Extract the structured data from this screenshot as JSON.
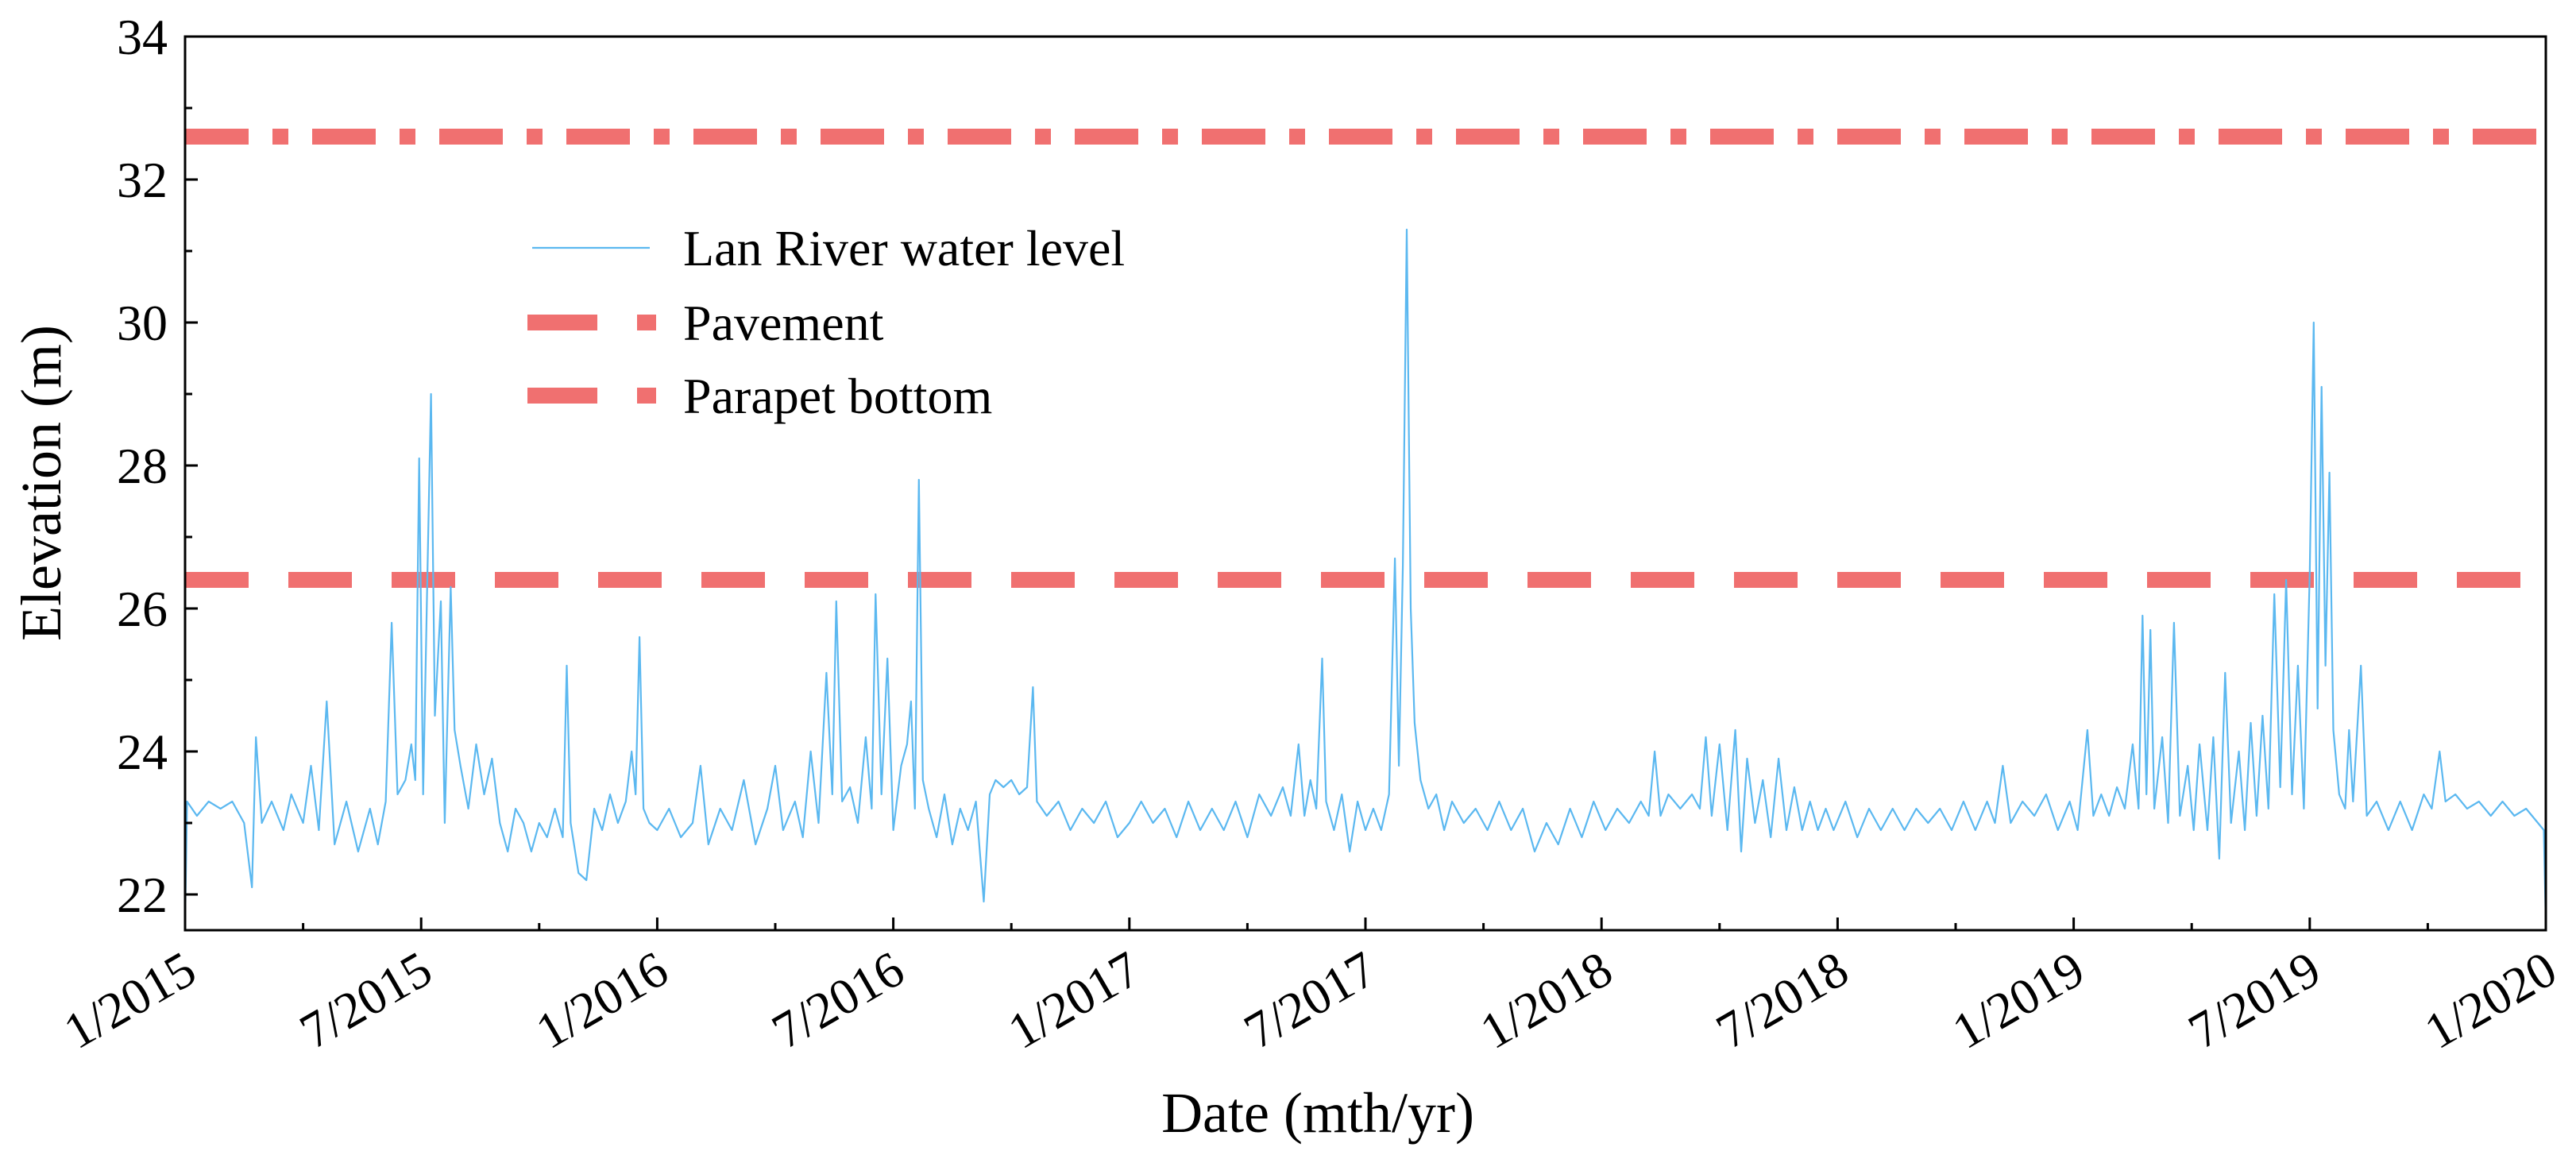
{
  "chart_data": {
    "type": "line",
    "title": "",
    "xlabel": "Date (mth/yr)",
    "ylabel": "Elevation (m)",
    "x_unit": "months since 1/2015",
    "xlim": [
      0,
      60
    ],
    "ylim": [
      21.5,
      34
    ],
    "xticks": [
      {
        "value": 0,
        "label": "1/2015"
      },
      {
        "value": 6,
        "label": "7/2015"
      },
      {
        "value": 12,
        "label": "1/2016"
      },
      {
        "value": 18,
        "label": "7/2016"
      },
      {
        "value": 24,
        "label": "1/2017"
      },
      {
        "value": 30,
        "label": "7/2017"
      },
      {
        "value": 36,
        "label": "1/2018"
      },
      {
        "value": 42,
        "label": "7/2018"
      },
      {
        "value": 48,
        "label": "1/2019"
      },
      {
        "value": 54,
        "label": "7/2019"
      },
      {
        "value": 60,
        "label": "1/2020"
      }
    ],
    "yticks": [
      {
        "value": 22,
        "label": "22"
      },
      {
        "value": 24,
        "label": "24"
      },
      {
        "value": 26,
        "label": "26"
      },
      {
        "value": 28,
        "label": "28"
      },
      {
        "value": 30,
        "label": "30"
      },
      {
        "value": 32,
        "label": "32"
      },
      {
        "value": 34,
        "label": "34"
      }
    ],
    "legend_position": "upper-left",
    "series": [
      {
        "name": "Lan River water level",
        "color": "#5BB8F0",
        "style": "solid",
        "points": [
          [
            0,
            21.6
          ],
          [
            0.05,
            23.3
          ],
          [
            0.3,
            23.1
          ],
          [
            0.6,
            23.3
          ],
          [
            0.9,
            23.2
          ],
          [
            1.2,
            23.3
          ],
          [
            1.5,
            23.0
          ],
          [
            1.7,
            22.1
          ],
          [
            1.8,
            24.2
          ],
          [
            1.95,
            23.0
          ],
          [
            2.2,
            23.3
          ],
          [
            2.5,
            22.9
          ],
          [
            2.7,
            23.4
          ],
          [
            3.0,
            23.0
          ],
          [
            3.2,
            23.8
          ],
          [
            3.4,
            22.9
          ],
          [
            3.6,
            24.7
          ],
          [
            3.8,
            22.7
          ],
          [
            4.1,
            23.3
          ],
          [
            4.4,
            22.6
          ],
          [
            4.7,
            23.2
          ],
          [
            4.9,
            22.7
          ],
          [
            5.1,
            23.3
          ],
          [
            5.25,
            25.8
          ],
          [
            5.4,
            23.4
          ],
          [
            5.6,
            23.6
          ],
          [
            5.75,
            24.1
          ],
          [
            5.85,
            23.6
          ],
          [
            5.95,
            28.1
          ],
          [
            6.05,
            23.4
          ],
          [
            6.15,
            26.2
          ],
          [
            6.25,
            29.0
          ],
          [
            6.35,
            24.5
          ],
          [
            6.5,
            26.1
          ],
          [
            6.6,
            23.0
          ],
          [
            6.75,
            26.3
          ],
          [
            6.85,
            24.3
          ],
          [
            7.0,
            23.8
          ],
          [
            7.2,
            23.2
          ],
          [
            7.4,
            24.1
          ],
          [
            7.6,
            23.4
          ],
          [
            7.8,
            23.9
          ],
          [
            8.0,
            23.0
          ],
          [
            8.2,
            22.6
          ],
          [
            8.4,
            23.2
          ],
          [
            8.6,
            23.0
          ],
          [
            8.8,
            22.6
          ],
          [
            9.0,
            23.0
          ],
          [
            9.2,
            22.8
          ],
          [
            9.4,
            23.2
          ],
          [
            9.6,
            22.8
          ],
          [
            9.7,
            25.2
          ],
          [
            9.8,
            23.0
          ],
          [
            10.0,
            22.3
          ],
          [
            10.2,
            22.2
          ],
          [
            10.4,
            23.2
          ],
          [
            10.6,
            22.9
          ],
          [
            10.8,
            23.4
          ],
          [
            11.0,
            23.0
          ],
          [
            11.2,
            23.3
          ],
          [
            11.35,
            24.0
          ],
          [
            11.45,
            23.4
          ],
          [
            11.55,
            25.6
          ],
          [
            11.65,
            23.2
          ],
          [
            11.8,
            23.0
          ],
          [
            12.0,
            22.9
          ],
          [
            12.3,
            23.2
          ],
          [
            12.6,
            22.8
          ],
          [
            12.9,
            23.0
          ],
          [
            13.1,
            23.8
          ],
          [
            13.3,
            22.7
          ],
          [
            13.6,
            23.2
          ],
          [
            13.9,
            22.9
          ],
          [
            14.2,
            23.6
          ],
          [
            14.5,
            22.7
          ],
          [
            14.8,
            23.2
          ],
          [
            15.0,
            23.8
          ],
          [
            15.2,
            22.9
          ],
          [
            15.5,
            23.3
          ],
          [
            15.7,
            22.8
          ],
          [
            15.9,
            24.0
          ],
          [
            16.1,
            23.0
          ],
          [
            16.3,
            25.1
          ],
          [
            16.45,
            23.4
          ],
          [
            16.55,
            26.1
          ],
          [
            16.7,
            23.3
          ],
          [
            16.9,
            23.5
          ],
          [
            17.1,
            23.0
          ],
          [
            17.3,
            24.2
          ],
          [
            17.45,
            23.2
          ],
          [
            17.55,
            26.2
          ],
          [
            17.7,
            23.4
          ],
          [
            17.85,
            25.3
          ],
          [
            18.0,
            22.9
          ],
          [
            18.2,
            23.8
          ],
          [
            18.35,
            24.1
          ],
          [
            18.45,
            24.7
          ],
          [
            18.55,
            23.2
          ],
          [
            18.65,
            27.8
          ],
          [
            18.75,
            23.6
          ],
          [
            18.9,
            23.2
          ],
          [
            19.1,
            22.8
          ],
          [
            19.3,
            23.4
          ],
          [
            19.5,
            22.7
          ],
          [
            19.7,
            23.2
          ],
          [
            19.9,
            22.9
          ],
          [
            20.1,
            23.3
          ],
          [
            20.3,
            21.9
          ],
          [
            20.45,
            23.4
          ],
          [
            20.6,
            23.6
          ],
          [
            20.8,
            23.5
          ],
          [
            21.0,
            23.6
          ],
          [
            21.2,
            23.4
          ],
          [
            21.4,
            23.5
          ],
          [
            21.55,
            24.9
          ],
          [
            21.65,
            23.3
          ],
          [
            21.9,
            23.1
          ],
          [
            22.2,
            23.3
          ],
          [
            22.5,
            22.9
          ],
          [
            22.8,
            23.2
          ],
          [
            23.1,
            23.0
          ],
          [
            23.4,
            23.3
          ],
          [
            23.7,
            22.8
          ],
          [
            24.0,
            23.0
          ],
          [
            24.3,
            23.3
          ],
          [
            24.6,
            23.0
          ],
          [
            24.9,
            23.2
          ],
          [
            25.2,
            22.8
          ],
          [
            25.5,
            23.3
          ],
          [
            25.8,
            22.9
          ],
          [
            26.1,
            23.2
          ],
          [
            26.4,
            22.9
          ],
          [
            26.7,
            23.3
          ],
          [
            27.0,
            22.8
          ],
          [
            27.3,
            23.4
          ],
          [
            27.6,
            23.1
          ],
          [
            27.9,
            23.5
          ],
          [
            28.1,
            23.1
          ],
          [
            28.3,
            24.1
          ],
          [
            28.45,
            23.1
          ],
          [
            28.6,
            23.6
          ],
          [
            28.75,
            23.2
          ],
          [
            28.9,
            25.3
          ],
          [
            29.0,
            23.3
          ],
          [
            29.2,
            22.9
          ],
          [
            29.4,
            23.4
          ],
          [
            29.6,
            22.6
          ],
          [
            29.8,
            23.3
          ],
          [
            30.0,
            22.9
          ],
          [
            30.2,
            23.2
          ],
          [
            30.4,
            22.9
          ],
          [
            30.6,
            23.4
          ],
          [
            30.75,
            26.7
          ],
          [
            30.85,
            23.8
          ],
          [
            30.95,
            26.6
          ],
          [
            31.05,
            31.3
          ],
          [
            31.15,
            26.0
          ],
          [
            31.25,
            24.4
          ],
          [
            31.4,
            23.6
          ],
          [
            31.6,
            23.2
          ],
          [
            31.8,
            23.4
          ],
          [
            32.0,
            22.9
          ],
          [
            32.2,
            23.3
          ],
          [
            32.5,
            23.0
          ],
          [
            32.8,
            23.2
          ],
          [
            33.1,
            22.9
          ],
          [
            33.4,
            23.3
          ],
          [
            33.7,
            22.9
          ],
          [
            34.0,
            23.2
          ],
          [
            34.3,
            22.6
          ],
          [
            34.6,
            23.0
          ],
          [
            34.9,
            22.7
          ],
          [
            35.2,
            23.2
          ],
          [
            35.5,
            22.8
          ],
          [
            35.8,
            23.3
          ],
          [
            36.1,
            22.9
          ],
          [
            36.4,
            23.2
          ],
          [
            36.7,
            23.0
          ],
          [
            37.0,
            23.3
          ],
          [
            37.2,
            23.1
          ],
          [
            37.35,
            24.0
          ],
          [
            37.5,
            23.1
          ],
          [
            37.7,
            23.4
          ],
          [
            38.0,
            23.2
          ],
          [
            38.3,
            23.4
          ],
          [
            38.5,
            23.2
          ],
          [
            38.65,
            24.2
          ],
          [
            38.8,
            23.1
          ],
          [
            39.0,
            24.1
          ],
          [
            39.2,
            22.9
          ],
          [
            39.4,
            24.3
          ],
          [
            39.55,
            22.6
          ],
          [
            39.7,
            23.9
          ],
          [
            39.9,
            23.0
          ],
          [
            40.1,
            23.6
          ],
          [
            40.3,
            22.8
          ],
          [
            40.5,
            23.9
          ],
          [
            40.7,
            22.9
          ],
          [
            40.9,
            23.5
          ],
          [
            41.1,
            22.9
          ],
          [
            41.3,
            23.3
          ],
          [
            41.5,
            22.9
          ],
          [
            41.7,
            23.2
          ],
          [
            41.9,
            22.9
          ],
          [
            42.2,
            23.3
          ],
          [
            42.5,
            22.8
          ],
          [
            42.8,
            23.2
          ],
          [
            43.1,
            22.9
          ],
          [
            43.4,
            23.2
          ],
          [
            43.7,
            22.9
          ],
          [
            44.0,
            23.2
          ],
          [
            44.3,
            23.0
          ],
          [
            44.6,
            23.2
          ],
          [
            44.9,
            22.9
          ],
          [
            45.2,
            23.3
          ],
          [
            45.5,
            22.9
          ],
          [
            45.8,
            23.3
          ],
          [
            46.0,
            23.0
          ],
          [
            46.2,
            23.8
          ],
          [
            46.4,
            23.0
          ],
          [
            46.7,
            23.3
          ],
          [
            47.0,
            23.1
          ],
          [
            47.3,
            23.4
          ],
          [
            47.6,
            22.9
          ],
          [
            47.9,
            23.3
          ],
          [
            48.1,
            22.9
          ],
          [
            48.35,
            24.3
          ],
          [
            48.5,
            23.1
          ],
          [
            48.7,
            23.4
          ],
          [
            48.9,
            23.1
          ],
          [
            49.1,
            23.5
          ],
          [
            49.3,
            23.2
          ],
          [
            49.5,
            24.1
          ],
          [
            49.65,
            23.2
          ],
          [
            49.75,
            25.9
          ],
          [
            49.85,
            23.4
          ],
          [
            49.95,
            25.7
          ],
          [
            50.05,
            23.2
          ],
          [
            50.25,
            24.2
          ],
          [
            50.4,
            23.0
          ],
          [
            50.55,
            25.8
          ],
          [
            50.7,
            23.1
          ],
          [
            50.9,
            23.8
          ],
          [
            51.05,
            22.9
          ],
          [
            51.2,
            24.1
          ],
          [
            51.4,
            22.9
          ],
          [
            51.55,
            24.2
          ],
          [
            51.7,
            22.5
          ],
          [
            51.85,
            25.1
          ],
          [
            52.0,
            23.0
          ],
          [
            52.2,
            24.0
          ],
          [
            52.35,
            22.9
          ],
          [
            52.5,
            24.4
          ],
          [
            52.65,
            23.1
          ],
          [
            52.8,
            24.5
          ],
          [
            52.95,
            23.2
          ],
          [
            53.1,
            26.2
          ],
          [
            53.25,
            23.5
          ],
          [
            53.4,
            26.4
          ],
          [
            53.55,
            23.4
          ],
          [
            53.7,
            25.2
          ],
          [
            53.85,
            23.2
          ],
          [
            54.0,
            26.5
          ],
          [
            54.1,
            30.0
          ],
          [
            54.2,
            24.6
          ],
          [
            54.3,
            29.1
          ],
          [
            54.4,
            25.2
          ],
          [
            54.5,
            27.9
          ],
          [
            54.6,
            24.3
          ],
          [
            54.75,
            23.4
          ],
          [
            54.9,
            23.2
          ],
          [
            55.0,
            24.3
          ],
          [
            55.1,
            23.3
          ],
          [
            55.3,
            25.2
          ],
          [
            55.45,
            23.1
          ],
          [
            55.7,
            23.3
          ],
          [
            56.0,
            22.9
          ],
          [
            56.3,
            23.3
          ],
          [
            56.6,
            22.9
          ],
          [
            56.9,
            23.4
          ],
          [
            57.1,
            23.2
          ],
          [
            57.3,
            24.0
          ],
          [
            57.45,
            23.3
          ],
          [
            57.7,
            23.4
          ],
          [
            58.0,
            23.2
          ],
          [
            58.3,
            23.3
          ],
          [
            58.6,
            23.1
          ],
          [
            58.9,
            23.3
          ],
          [
            59.2,
            23.1
          ],
          [
            59.5,
            23.2
          ],
          [
            59.8,
            23.0
          ],
          [
            59.95,
            22.9
          ],
          [
            60,
            21.6
          ]
        ]
      },
      {
        "name": "Pavement",
        "color": "#F07070",
        "style": "dash",
        "value": 26.4
      },
      {
        "name": "Parapet bottom",
        "color": "#F07070",
        "style": "dashdot",
        "value": 32.6
      }
    ]
  }
}
